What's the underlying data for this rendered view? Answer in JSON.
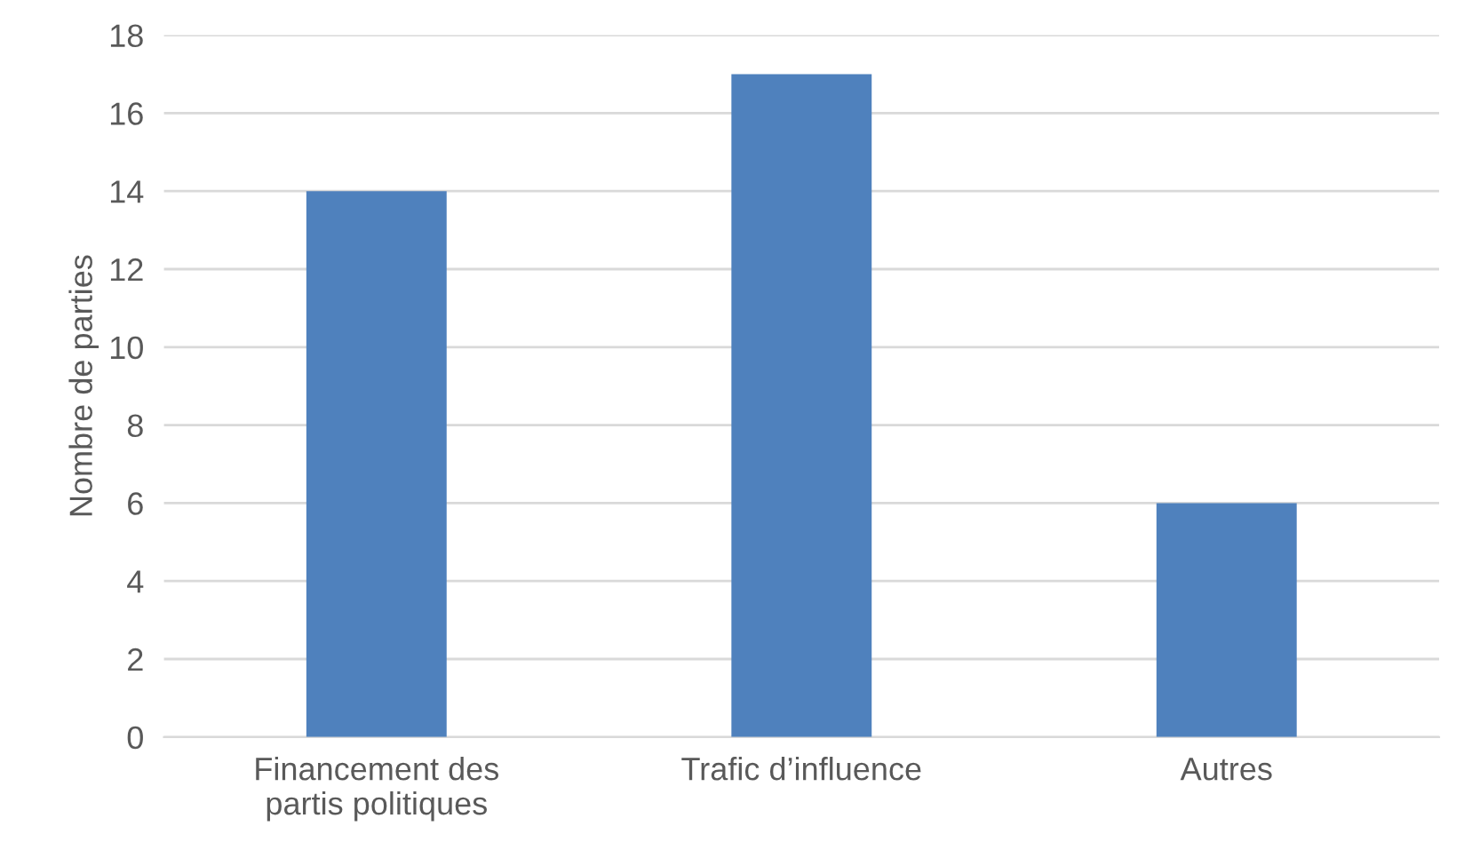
{
  "chart_data": {
    "type": "bar",
    "ylabel": "Nombre de parties",
    "categories": [
      "Financement des\npartis politiques",
      "Trafic d’influence",
      "Autres"
    ],
    "values": [
      14,
      17,
      6
    ],
    "color": "#4f81bd",
    "ylim": [
      0,
      18
    ],
    "yticks": [
      0,
      2,
      4,
      6,
      8,
      10,
      12,
      14,
      16,
      18
    ],
    "grid": "y"
  }
}
